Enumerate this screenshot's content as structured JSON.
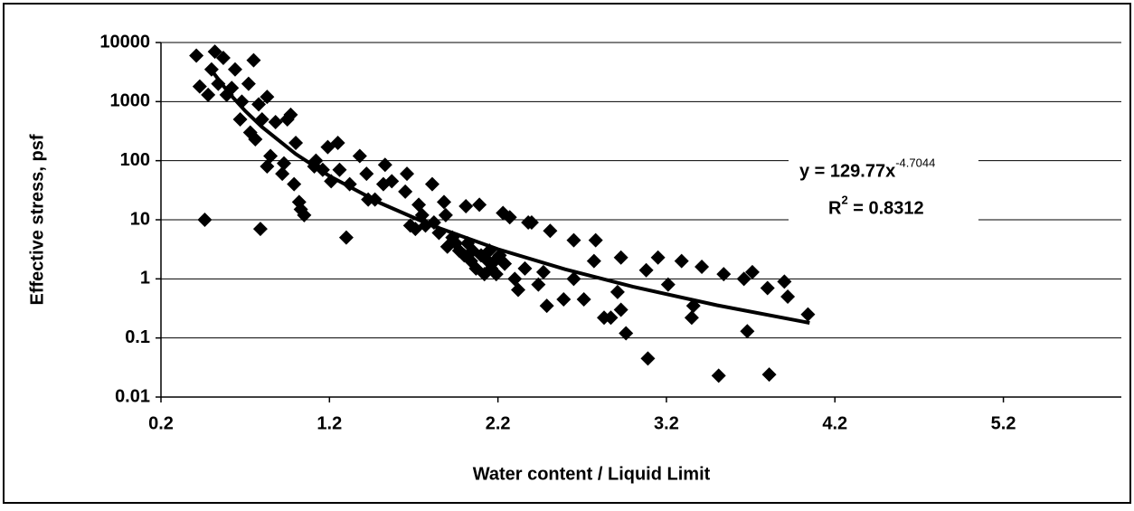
{
  "chart_data": {
    "type": "scatter",
    "x_label": "Water content / Liquid Limit",
    "y_label": "Effective stress, psf",
    "equation": {
      "text": "y = 129.77x",
      "superscript": "-4.7044"
    },
    "r_squared": {
      "text": "R",
      "superscript": "2",
      "rest": " = 0.8312"
    },
    "xlim": [
      0.2,
      5.9
    ],
    "xticks": [
      0.2,
      1.2,
      2.2,
      3.2,
      4.2,
      5.2
    ],
    "ylim": [
      0.01,
      10000
    ],
    "yticks": [
      10000,
      1000,
      100,
      10,
      1,
      0.1,
      0.01
    ],
    "y_log": true,
    "grid": true,
    "series": [
      {
        "color": "#000000",
        "x": [
          0.41,
          0.43,
          0.48,
          0.5,
          0.52,
          0.54,
          0.57,
          0.59,
          0.62,
          0.64,
          0.67,
          0.68,
          0.72,
          0.73,
          0.75,
          0.76,
          0.78,
          0.8,
          0.83,
          0.83,
          0.85,
          0.88,
          0.92,
          0.93,
          0.95,
          0.97,
          0.99,
          1.0,
          1.02,
          1.03,
          1.05,
          1.11,
          1.12,
          1.16,
          1.19,
          1.21,
          1.25,
          1.26,
          1.3,
          1.32,
          1.38,
          1.42,
          1.43,
          1.47,
          1.53,
          1.52,
          1.57,
          1.65,
          1.66,
          1.68,
          1.71,
          1.73,
          1.75,
          1.77,
          1.81,
          1.82,
          1.85,
          1.88,
          1.89,
          1.9,
          1.93,
          1.95,
          1.97,
          2.0,
          2.01,
          2.02,
          2.04,
          2.05,
          2.07,
          2.09,
          2.1,
          2.12,
          2.14,
          2.15,
          2.16,
          2.18,
          2.19,
          2.21,
          2.23,
          2.24,
          2.27,
          2.3,
          2.32,
          2.36,
          2.38,
          2.4,
          2.44,
          2.47,
          2.49,
          2.51,
          2.59,
          2.65,
          2.65,
          2.71,
          2.77,
          2.78,
          2.83,
          2.87,
          2.91,
          2.93,
          2.93,
          2.96,
          3.08,
          3.09,
          3.15,
          3.21,
          3.29,
          3.35,
          3.36,
          3.41,
          3.51,
          3.54,
          3.66,
          3.68,
          3.71,
          3.8,
          3.81,
          3.9,
          3.92,
          4.04,
          0.46,
          0.79
        ],
        "values": [
          6000,
          1800,
          1300,
          3500,
          7000,
          2000,
          5500,
          1300,
          1700,
          3500,
          500,
          1000,
          2000,
          300,
          5000,
          230,
          900,
          500,
          1200,
          80,
          120,
          450,
          60,
          90,
          500,
          600,
          40,
          200,
          20,
          15,
          12,
          80,
          100,
          70,
          170,
          45,
          200,
          70,
          5,
          40,
          120,
          60,
          22,
          22,
          85,
          40,
          45,
          30,
          60,
          8,
          7,
          18,
          12,
          8,
          40,
          9,
          6,
          20,
          12,
          3.5,
          5,
          4,
          3,
          2.5,
          17,
          4,
          2,
          3,
          1.5,
          18,
          2.5,
          1.2,
          2,
          3,
          1.5,
          2,
          1.2,
          2.5,
          13,
          1.8,
          11,
          1,
          0.65,
          1.5,
          9,
          9,
          0.8,
          1.3,
          0.35,
          6.5,
          0.45,
          4.5,
          1,
          0.45,
          2,
          4.5,
          0.22,
          0.22,
          0.6,
          0.3,
          2.3,
          0.12,
          1.4,
          0.045,
          2.3,
          0.8,
          2,
          0.22,
          0.35,
          1.6,
          0.023,
          1.2,
          1,
          0.13,
          1.3,
          0.7,
          0.024,
          0.9,
          0.5,
          0.25,
          10,
          7
        ]
      }
    ],
    "trendline": {
      "color": "#000000",
      "x": [
        0.5,
        0.6,
        0.7,
        0.8,
        1.0,
        1.2,
        1.5,
        1.8,
        2.2,
        2.6,
        3.0,
        3.5,
        4.05
      ],
      "values": [
        3383,
        1435,
        695,
        370.7,
        129.77,
        55.05,
        19.27,
        8.17,
        3.18,
        1.448,
        0.739,
        0.358,
        0.18
      ]
    }
  }
}
